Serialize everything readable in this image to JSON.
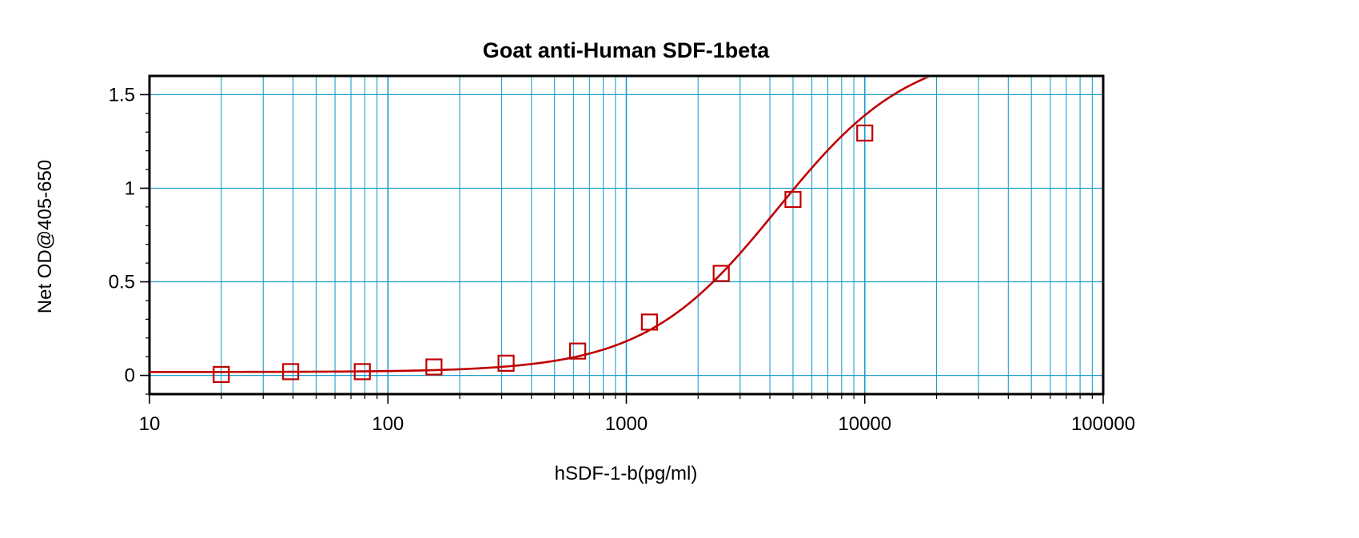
{
  "chart_data": {
    "type": "scatter",
    "title": "Goat anti-Human SDF-1beta",
    "xlabel": "hSDF-1-b(pg/ml)",
    "ylabel": "Net OD@405-650",
    "x_scale": "log",
    "xlim": [
      10,
      100000
    ],
    "ylim": [
      -0.1,
      1.6
    ],
    "x_ticks": [
      10,
      100,
      1000,
      10000,
      100000
    ],
    "x_tick_labels": [
      "10",
      "100",
      "1000",
      "10000",
      "100000"
    ],
    "y_ticks": [
      0,
      0.5,
      1,
      1.5
    ],
    "y_tick_labels": [
      "0",
      "0.5",
      "1",
      "1.5"
    ],
    "grid": true,
    "colors": {
      "series": "#c00000",
      "grid": "#1e9ecf",
      "axis": "#000000"
    },
    "series": [
      {
        "marker": "square",
        "points": [
          {
            "x": 20,
            "y": 0.005
          },
          {
            "x": 39.1,
            "y": 0.02
          },
          {
            "x": 78.1,
            "y": 0.02
          },
          {
            "x": 156,
            "y": 0.045
          },
          {
            "x": 313,
            "y": 0.065
          },
          {
            "x": 625,
            "y": 0.13
          },
          {
            "x": 1250,
            "y": 0.285
          },
          {
            "x": 2500,
            "y": 0.545
          },
          {
            "x": 5000,
            "y": 0.94
          },
          {
            "x": 10000,
            "y": 1.295
          }
        ],
        "fit": {
          "model": "4PL",
          "bottom": 0.018,
          "top": 1.76,
          "ec50": 4300,
          "hill": 1.55
        }
      }
    ]
  }
}
